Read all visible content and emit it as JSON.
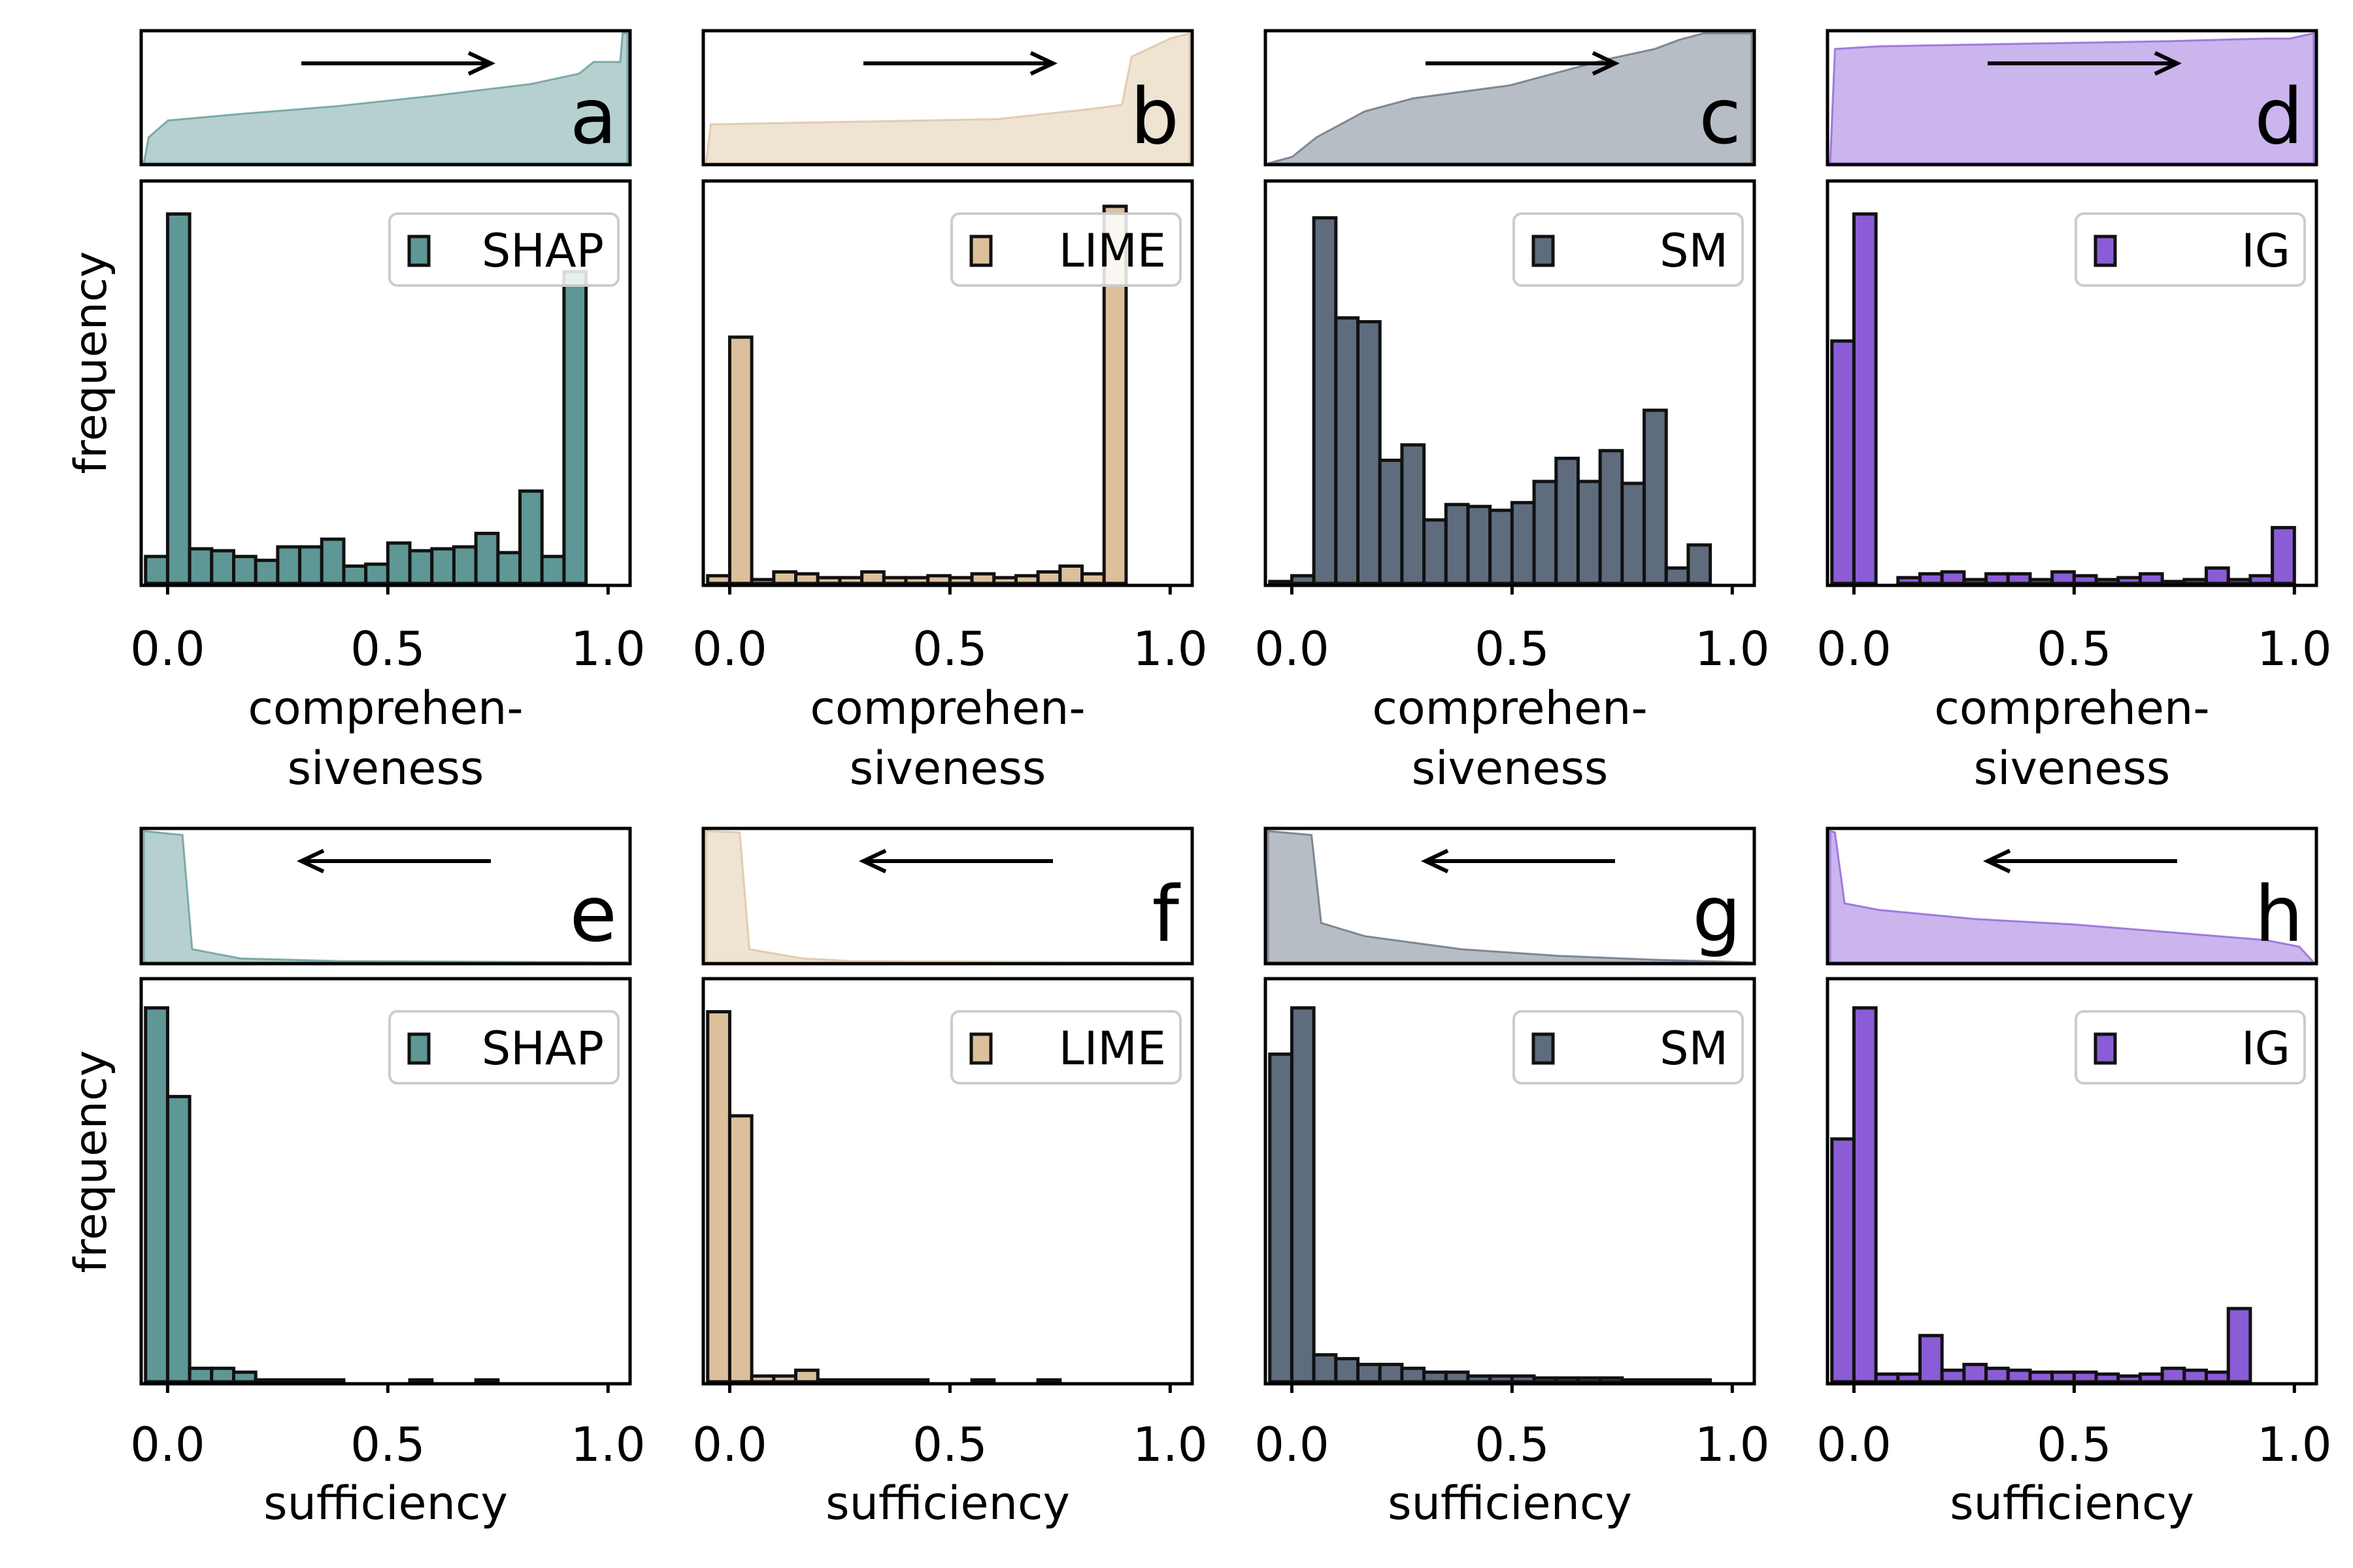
{
  "figure": {
    "ylabel": "frequency"
  },
  "chart_data": [
    {
      "type": "bar",
      "panel_label": "a",
      "method": "SHAP",
      "color": "#5e9795",
      "xlabel": "comprehen-\nsiveness",
      "xlim": [
        -0.06,
        1.05
      ],
      "ylim": [
        0,
        1.0
      ],
      "xticks": [
        "0.0",
        "0.5",
        "1.0"
      ],
      "bin_width": 0.05,
      "bin_centers": [
        -0.025,
        0.025,
        0.075,
        0.125,
        0.175,
        0.225,
        0.275,
        0.325,
        0.375,
        0.425,
        0.475,
        0.525,
        0.575,
        0.625,
        0.675,
        0.725,
        0.775,
        0.825,
        0.875,
        0.925,
        0.975
      ],
      "values": [
        0.07,
        0.96,
        0.09,
        0.085,
        0.07,
        0.06,
        0.095,
        0.095,
        0.115,
        0.045,
        0.05,
        0.105,
        0.085,
        0.09,
        0.095,
        0.13,
        0.08,
        0.24,
        0.07,
        0.81,
        0.0
      ],
      "cdf_direction": "increasing",
      "cdf_points": [
        [
          0.0,
          0.0
        ],
        [
          0.01,
          0.2
        ],
        [
          0.05,
          0.33
        ],
        [
          0.2,
          0.38
        ],
        [
          0.4,
          0.44
        ],
        [
          0.6,
          0.52
        ],
        [
          0.8,
          0.61
        ],
        [
          0.9,
          0.69
        ],
        [
          0.93,
          0.78
        ],
        [
          0.985,
          0.78
        ],
        [
          0.99,
          1.0
        ],
        [
          1.0,
          1.0
        ]
      ]
    },
    {
      "type": "bar",
      "panel_label": "b",
      "method": "LIME",
      "color": "#dcc09c",
      "xlabel": "comprehen-\nsiveness",
      "xlim": [
        -0.06,
        1.05
      ],
      "ylim": [
        0,
        1.0
      ],
      "xticks": [
        "0.0",
        "0.5",
        "1.0"
      ],
      "bin_width": 0.05,
      "bin_centers": [
        -0.025,
        0.025,
        0.075,
        0.125,
        0.175,
        0.225,
        0.275,
        0.325,
        0.375,
        0.425,
        0.475,
        0.525,
        0.575,
        0.625,
        0.675,
        0.725,
        0.775,
        0.825,
        0.875,
        0.925,
        0.975
      ],
      "values": [
        0.02,
        0.64,
        0.01,
        0.03,
        0.025,
        0.015,
        0.015,
        0.03,
        0.015,
        0.015,
        0.02,
        0.015,
        0.025,
        0.015,
        0.02,
        0.03,
        0.045,
        0.025,
        0.98,
        0.0,
        0.0
      ],
      "cdf_direction": "increasing",
      "cdf_points": [
        [
          0.0,
          0.0
        ],
        [
          0.01,
          0.3
        ],
        [
          0.3,
          0.32
        ],
        [
          0.6,
          0.34
        ],
        [
          0.8,
          0.42
        ],
        [
          0.86,
          0.45
        ],
        [
          0.88,
          0.82
        ],
        [
          0.96,
          0.96
        ],
        [
          1.0,
          1.0
        ]
      ]
    },
    {
      "type": "bar",
      "panel_label": "c",
      "method": "SM",
      "color": "#5f6c7d",
      "xlabel": "comprehen-\nsiveness",
      "xlim": [
        -0.06,
        1.05
      ],
      "ylim": [
        0,
        1.0
      ],
      "xticks": [
        "0.0",
        "0.5",
        "1.0"
      ],
      "bin_width": 0.05,
      "bin_centers": [
        -0.025,
        0.025,
        0.075,
        0.125,
        0.175,
        0.225,
        0.275,
        0.325,
        0.375,
        0.425,
        0.475,
        0.525,
        0.575,
        0.625,
        0.675,
        0.725,
        0.775,
        0.825,
        0.875,
        0.925,
        0.975
      ],
      "values": [
        0.005,
        0.02,
        0.95,
        0.69,
        0.68,
        0.32,
        0.36,
        0.165,
        0.205,
        0.2,
        0.19,
        0.21,
        0.265,
        0.325,
        0.265,
        0.345,
        0.26,
        0.45,
        0.04,
        0.1,
        0.0
      ],
      "cdf_direction": "increasing",
      "cdf_points": [
        [
          0.0,
          0.0
        ],
        [
          0.05,
          0.05
        ],
        [
          0.1,
          0.2
        ],
        [
          0.2,
          0.4
        ],
        [
          0.3,
          0.5
        ],
        [
          0.5,
          0.6
        ],
        [
          0.6,
          0.7
        ],
        [
          0.7,
          0.8
        ],
        [
          0.8,
          0.88
        ],
        [
          0.85,
          0.95
        ],
        [
          0.9,
          1.0
        ],
        [
          1.0,
          1.0
        ]
      ]
    },
    {
      "type": "bar",
      "panel_label": "d",
      "method": "IG",
      "color": "#8a5cd6",
      "xlabel": "comprehen-\nsiveness",
      "xlim": [
        -0.06,
        1.05
      ],
      "ylim": [
        0,
        1.0
      ],
      "xticks": [
        "0.0",
        "0.5",
        "1.0"
      ],
      "bin_width": 0.05,
      "bin_centers": [
        -0.025,
        0.025,
        0.075,
        0.125,
        0.175,
        0.225,
        0.275,
        0.325,
        0.375,
        0.425,
        0.475,
        0.525,
        0.575,
        0.625,
        0.675,
        0.725,
        0.775,
        0.825,
        0.875,
        0.925,
        0.975
      ],
      "values": [
        0.63,
        0.96,
        0.0,
        0.015,
        0.025,
        0.03,
        0.01,
        0.025,
        0.025,
        0.01,
        0.03,
        0.02,
        0.01,
        0.015,
        0.025,
        0.005,
        0.01,
        0.04,
        0.01,
        0.02,
        0.145
      ],
      "cdf_direction": "increasing",
      "cdf_points": [
        [
          0.0,
          0.0
        ],
        [
          0.01,
          0.88
        ],
        [
          0.1,
          0.9
        ],
        [
          0.4,
          0.92
        ],
        [
          0.7,
          0.94
        ],
        [
          0.9,
          0.96
        ],
        [
          0.95,
          0.96
        ],
        [
          1.0,
          1.0
        ]
      ]
    },
    {
      "type": "bar",
      "panel_label": "e",
      "method": "SHAP",
      "color": "#5e9795",
      "xlabel": "sufficiency",
      "xlim": [
        -0.06,
        1.05
      ],
      "ylim": [
        0,
        1.0
      ],
      "xticks": [
        "0.0",
        "0.5",
        "1.0"
      ],
      "bin_width": 0.05,
      "bin_centers": [
        -0.025,
        0.025,
        0.075,
        0.125,
        0.175,
        0.225,
        0.275,
        0.325,
        0.375,
        0.425,
        0.475,
        0.525,
        0.575,
        0.625,
        0.675,
        0.725,
        0.775,
        0.825,
        0.875,
        0.925,
        0.975
      ],
      "values": [
        0.97,
        0.74,
        0.035,
        0.035,
        0.025,
        0.005,
        0.005,
        0.005,
        0.005,
        0.0,
        0.0,
        0.0,
        0.005,
        0.0,
        0.0,
        0.005,
        0.0,
        0.0,
        0.0,
        0.0,
        0.0
      ],
      "cdf_direction": "decreasing",
      "cdf_points": [
        [
          0.0,
          1.0
        ],
        [
          0.08,
          0.97
        ],
        [
          0.1,
          0.1
        ],
        [
          0.2,
          0.03
        ],
        [
          0.4,
          0.01
        ],
        [
          1.0,
          0.0
        ]
      ]
    },
    {
      "type": "bar",
      "panel_label": "f",
      "method": "LIME",
      "color": "#dcc09c",
      "xlabel": "sufficiency",
      "xlim": [
        -0.06,
        1.05
      ],
      "ylim": [
        0,
        1.0
      ],
      "xticks": [
        "0.0",
        "0.5",
        "1.0"
      ],
      "bin_width": 0.05,
      "bin_centers": [
        -0.025,
        0.025,
        0.075,
        0.125,
        0.175,
        0.225,
        0.275,
        0.325,
        0.375,
        0.425,
        0.475,
        0.525,
        0.575,
        0.625,
        0.675,
        0.725,
        0.775,
        0.825,
        0.875,
        0.925,
        0.975
      ],
      "values": [
        0.96,
        0.69,
        0.015,
        0.015,
        0.03,
        0.005,
        0.005,
        0.005,
        0.005,
        0.005,
        0.0,
        0.0,
        0.005,
        0.0,
        0.0,
        0.005,
        0.0,
        0.0,
        0.0,
        0.0,
        0.0
      ],
      "cdf_direction": "decreasing",
      "cdf_points": [
        [
          0.0,
          1.0
        ],
        [
          0.07,
          0.99
        ],
        [
          0.09,
          0.1
        ],
        [
          0.2,
          0.03
        ],
        [
          0.3,
          0.01
        ],
        [
          1.0,
          0.0
        ]
      ]
    },
    {
      "type": "bar",
      "panel_label": "g",
      "method": "SM",
      "color": "#5f6c7d",
      "xlabel": "sufficiency",
      "xlim": [
        -0.06,
        1.05
      ],
      "ylim": [
        0,
        1.0
      ],
      "xticks": [
        "0.0",
        "0.5",
        "1.0"
      ],
      "bin_width": 0.05,
      "bin_centers": [
        -0.025,
        0.025,
        0.075,
        0.125,
        0.175,
        0.225,
        0.275,
        0.325,
        0.375,
        0.425,
        0.475,
        0.525,
        0.575,
        0.625,
        0.675,
        0.725,
        0.775,
        0.825,
        0.875,
        0.925,
        0.975
      ],
      "values": [
        0.85,
        0.97,
        0.07,
        0.06,
        0.045,
        0.045,
        0.035,
        0.025,
        0.025,
        0.015,
        0.015,
        0.015,
        0.01,
        0.01,
        0.01,
        0.01,
        0.005,
        0.005,
        0.005,
        0.005,
        0.0
      ],
      "cdf_direction": "decreasing",
      "cdf_points": [
        [
          0.0,
          1.0
        ],
        [
          0.09,
          0.97
        ],
        [
          0.11,
          0.3
        ],
        [
          0.2,
          0.2
        ],
        [
          0.4,
          0.1
        ],
        [
          0.6,
          0.05
        ],
        [
          0.8,
          0.02
        ],
        [
          1.0,
          0.0
        ]
      ]
    },
    {
      "type": "bar",
      "panel_label": "h",
      "method": "IG",
      "color": "#8a5cd6",
      "xlabel": "sufficiency",
      "xlim": [
        -0.06,
        1.05
      ],
      "ylim": [
        0,
        1.0
      ],
      "xticks": [
        "0.0",
        "0.5",
        "1.0"
      ],
      "bin_width": 0.05,
      "bin_centers": [
        -0.025,
        0.025,
        0.075,
        0.125,
        0.175,
        0.225,
        0.275,
        0.325,
        0.375,
        0.425,
        0.475,
        0.525,
        0.575,
        0.625,
        0.675,
        0.725,
        0.775,
        0.825,
        0.875,
        0.925,
        0.975
      ],
      "values": [
        0.63,
        0.97,
        0.02,
        0.02,
        0.12,
        0.03,
        0.045,
        0.035,
        0.03,
        0.025,
        0.025,
        0.025,
        0.02,
        0.015,
        0.02,
        0.035,
        0.03,
        0.025,
        0.19,
        0.0,
        0.0
      ],
      "cdf_direction": "decreasing",
      "cdf_points": [
        [
          0.0,
          1.0
        ],
        [
          0.01,
          0.99
        ],
        [
          0.03,
          0.45
        ],
        [
          0.1,
          0.4
        ],
        [
          0.3,
          0.33
        ],
        [
          0.5,
          0.29
        ],
        [
          0.7,
          0.23
        ],
        [
          0.9,
          0.17
        ],
        [
          0.97,
          0.12
        ],
        [
          1.0,
          0.0
        ]
      ]
    }
  ]
}
